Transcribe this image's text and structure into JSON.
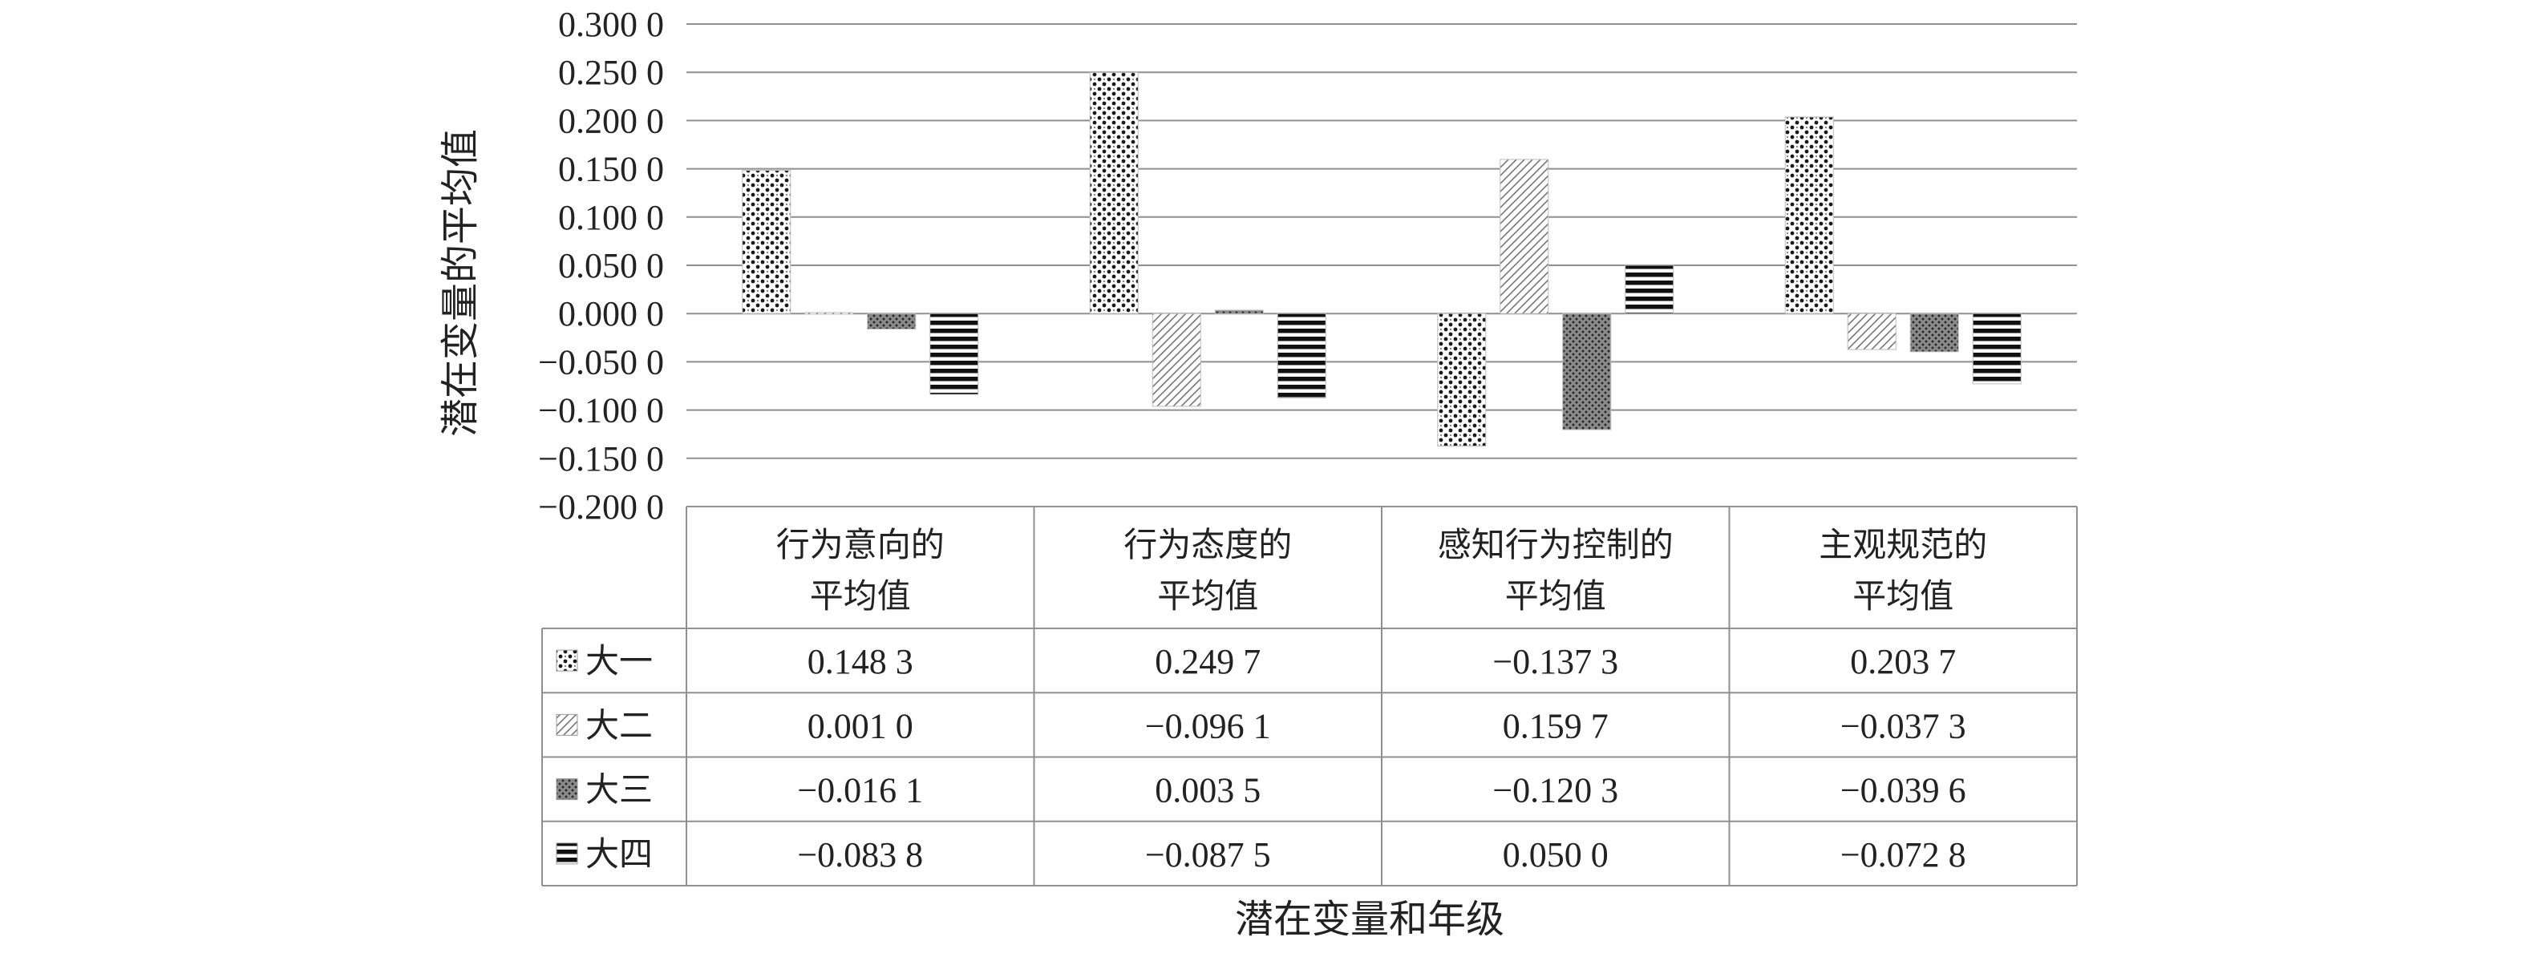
{
  "chart_data": {
    "type": "bar",
    "xlabel": "潜在变量和年级",
    "ylabel": "潜在变量的平均值",
    "ylim": [
      -0.2,
      0.3
    ],
    "yticks": [
      "0.300 0",
      "0.250 0",
      "0.200 0",
      "0.150 0",
      "0.100 0",
      "0.050 0",
      "0.000 0",
      "−0.050 0",
      "−0.100 0",
      "−0.150 0",
      "−0.200 0"
    ],
    "categories": [
      [
        "行为意向的",
        "平均值"
      ],
      [
        "行为态度的",
        "平均值"
      ],
      [
        "感知行为控制的",
        "平均值"
      ],
      [
        "主观规范的",
        "平均值"
      ]
    ],
    "grid": true,
    "legend_position": "table-left",
    "series": [
      {
        "name": "大一",
        "values": [
          0.1483,
          0.2497,
          -0.1373,
          0.2037
        ],
        "labels": [
          "0.148 3",
          "0.249 7",
          "−0.137 3",
          "0.203 7"
        ],
        "pattern": "dots-dense"
      },
      {
        "name": "大二",
        "values": [
          0.001,
          -0.0961,
          0.1597,
          -0.0373
        ],
        "labels": [
          "0.001 0",
          "−0.096 1",
          "0.159 7",
          "−0.037 3"
        ],
        "pattern": "diagonal-light"
      },
      {
        "name": "大三",
        "values": [
          -0.0161,
          0.0035,
          -0.1203,
          -0.0396
        ],
        "labels": [
          "−0.016 1",
          "0.003 5",
          "−0.120 3",
          "−0.039 6"
        ],
        "pattern": "dots-dark"
      },
      {
        "name": "大四",
        "values": [
          -0.0838,
          -0.0875,
          0.05,
          -0.0728
        ],
        "labels": [
          "−0.083 8",
          "−0.087 5",
          "0.050 0",
          "−0.072 8"
        ],
        "pattern": "horizontal-stripes"
      }
    ]
  }
}
